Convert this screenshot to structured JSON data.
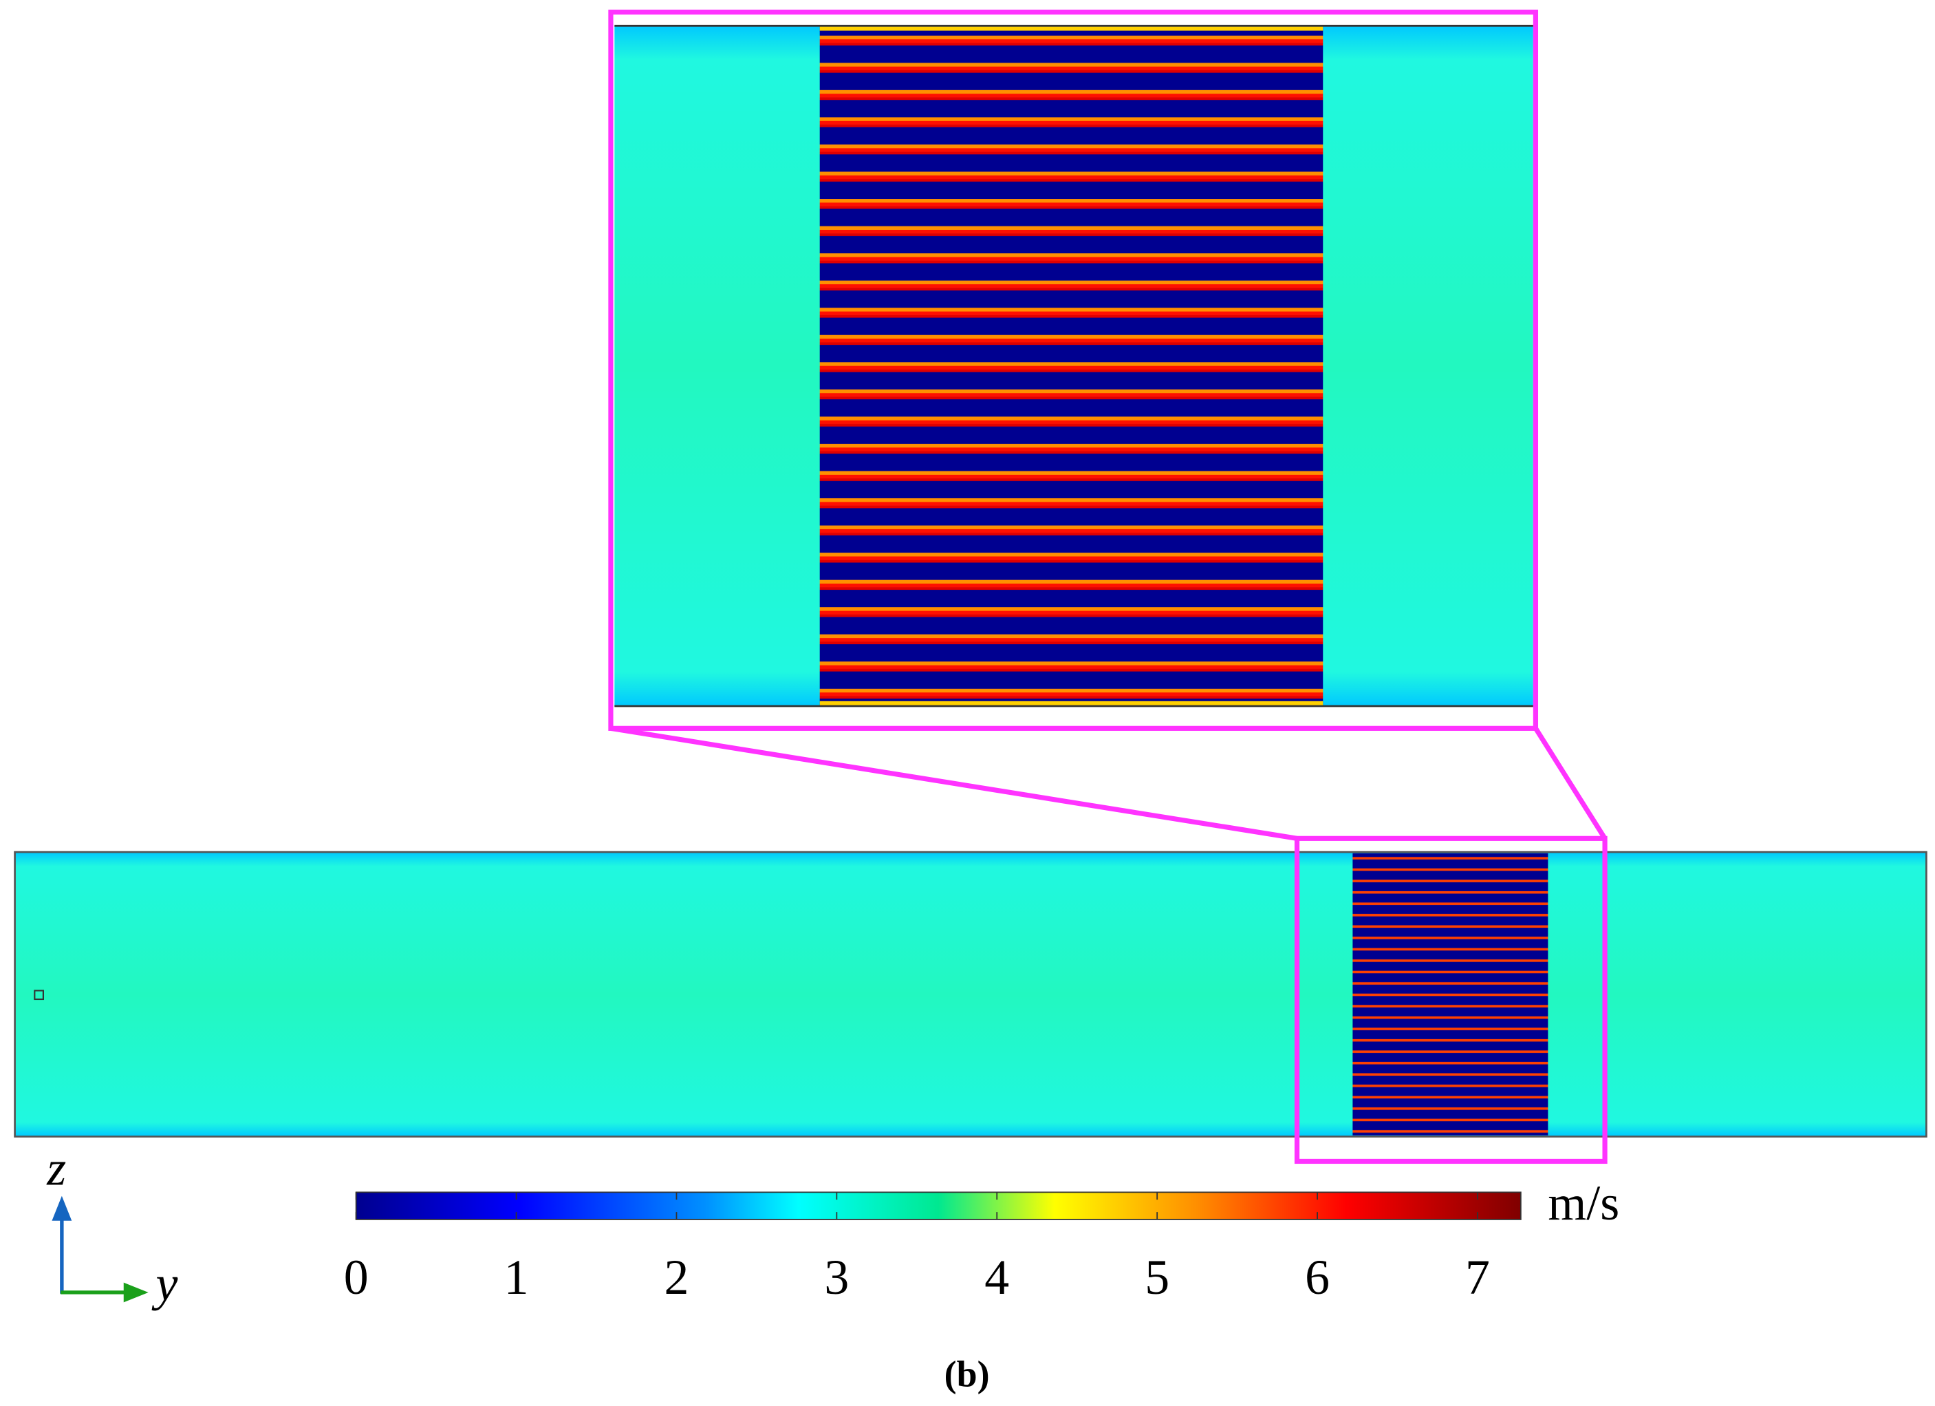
{
  "colorbar": {
    "min": 0,
    "max": 7.27,
    "ticks": [
      0,
      1,
      2,
      3,
      4,
      5,
      6,
      7
    ],
    "unit": "m/s"
  },
  "axes": {
    "vertical": "z",
    "horizontal": "y"
  },
  "caption": "(b)"
}
